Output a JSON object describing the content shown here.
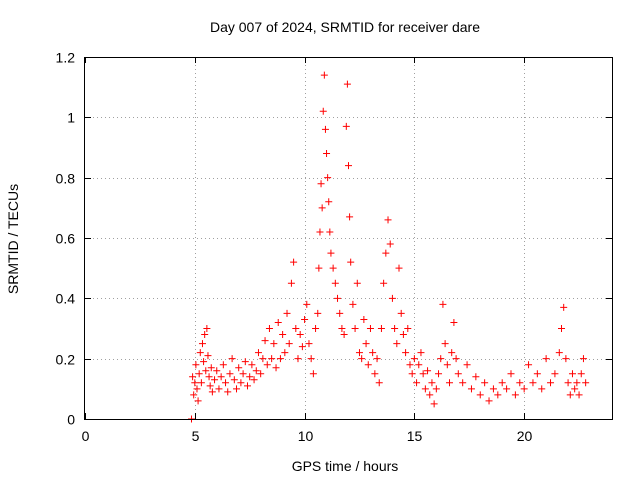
{
  "chart_data": {
    "type": "scatter",
    "title": "Day 007 of 2024, SRMTID for receiver dare",
    "xlabel": "GPS time / hours",
    "ylabel": "SRMTID / TECUs",
    "xlim": [
      0,
      24
    ],
    "ylim": [
      0,
      1.2
    ],
    "xticks": [
      0,
      5,
      10,
      15,
      20
    ],
    "yticks": [
      0,
      0.2,
      0.4,
      0.6,
      0.8,
      1,
      1.2
    ],
    "xtick_labels": [
      "0",
      "5",
      "10",
      "15",
      "20"
    ],
    "ytick_labels": [
      "0",
      "0.2",
      "0.4",
      "0.6",
      "0.8",
      "1",
      "1.2"
    ],
    "grid": true,
    "marker": "+",
    "series_color": "#ff0000",
    "points": [
      [
        4.85,
        0.0
      ],
      [
        4.9,
        0.14
      ],
      [
        4.95,
        0.08
      ],
      [
        5.0,
        0.12
      ],
      [
        5.05,
        0.18
      ],
      [
        5.1,
        0.1
      ],
      [
        5.15,
        0.06
      ],
      [
        5.2,
        0.15
      ],
      [
        5.25,
        0.22
      ],
      [
        5.3,
        0.12
      ],
      [
        5.35,
        0.25
      ],
      [
        5.4,
        0.19
      ],
      [
        5.45,
        0.28
      ],
      [
        5.5,
        0.16
      ],
      [
        5.55,
        0.3
      ],
      [
        5.6,
        0.21
      ],
      [
        5.65,
        0.14
      ],
      [
        5.7,
        0.11
      ],
      [
        5.75,
        0.17
      ],
      [
        5.8,
        0.09
      ],
      [
        5.9,
        0.13
      ],
      [
        6.0,
        0.16
      ],
      [
        6.1,
        0.1
      ],
      [
        6.2,
        0.14
      ],
      [
        6.3,
        0.18
      ],
      [
        6.4,
        0.12
      ],
      [
        6.5,
        0.09
      ],
      [
        6.6,
        0.15
      ],
      [
        6.7,
        0.2
      ],
      [
        6.8,
        0.13
      ],
      [
        6.9,
        0.1
      ],
      [
        7.0,
        0.17
      ],
      [
        7.1,
        0.12
      ],
      [
        7.2,
        0.15
      ],
      [
        7.3,
        0.19
      ],
      [
        7.4,
        0.11
      ],
      [
        7.5,
        0.14
      ],
      [
        7.6,
        0.18
      ],
      [
        7.7,
        0.13
      ],
      [
        7.8,
        0.16
      ],
      [
        7.9,
        0.22
      ],
      [
        8.0,
        0.15
      ],
      [
        8.1,
        0.2
      ],
      [
        8.2,
        0.26
      ],
      [
        8.3,
        0.18
      ],
      [
        8.4,
        0.3
      ],
      [
        8.5,
        0.2
      ],
      [
        8.6,
        0.25
      ],
      [
        8.7,
        0.17
      ],
      [
        8.8,
        0.32
      ],
      [
        8.9,
        0.2
      ],
      [
        9.0,
        0.28
      ],
      [
        9.1,
        0.22
      ],
      [
        9.2,
        0.35
      ],
      [
        9.3,
        0.25
      ],
      [
        9.4,
        0.45
      ],
      [
        9.5,
        0.52
      ],
      [
        9.6,
        0.3
      ],
      [
        9.7,
        0.2
      ],
      [
        9.8,
        0.28
      ],
      [
        9.9,
        0.24
      ],
      [
        10.0,
        0.33
      ],
      [
        10.1,
        0.38
      ],
      [
        10.2,
        0.25
      ],
      [
        10.3,
        0.2
      ],
      [
        10.4,
        0.15
      ],
      [
        10.5,
        0.3
      ],
      [
        10.6,
        0.35
      ],
      [
        10.65,
        0.5
      ],
      [
        10.7,
        0.62
      ],
      [
        10.75,
        0.78
      ],
      [
        10.8,
        0.7
      ],
      [
        10.85,
        1.02
      ],
      [
        10.9,
        1.14
      ],
      [
        10.95,
        0.96
      ],
      [
        11.0,
        0.88
      ],
      [
        11.05,
        0.8
      ],
      [
        11.1,
        0.72
      ],
      [
        11.15,
        0.62
      ],
      [
        11.2,
        0.55
      ],
      [
        11.3,
        0.5
      ],
      [
        11.4,
        0.45
      ],
      [
        11.5,
        0.4
      ],
      [
        11.6,
        0.35
      ],
      [
        11.7,
        0.3
      ],
      [
        11.8,
        0.28
      ],
      [
        11.9,
        0.97
      ],
      [
        11.95,
        1.11
      ],
      [
        12.0,
        0.84
      ],
      [
        12.05,
        0.67
      ],
      [
        12.1,
        0.52
      ],
      [
        12.2,
        0.38
      ],
      [
        12.3,
        0.3
      ],
      [
        12.4,
        0.45
      ],
      [
        12.5,
        0.22
      ],
      [
        12.6,
        0.2
      ],
      [
        12.7,
        0.33
      ],
      [
        12.8,
        0.25
      ],
      [
        12.9,
        0.18
      ],
      [
        13.0,
        0.3
      ],
      [
        13.1,
        0.22
      ],
      [
        13.2,
        0.15
      ],
      [
        13.3,
        0.2
      ],
      [
        13.4,
        0.12
      ],
      [
        13.5,
        0.3
      ],
      [
        13.6,
        0.45
      ],
      [
        13.7,
        0.55
      ],
      [
        13.8,
        0.66
      ],
      [
        13.9,
        0.58
      ],
      [
        14.0,
        0.4
      ],
      [
        14.1,
        0.3
      ],
      [
        14.2,
        0.25
      ],
      [
        14.3,
        0.5
      ],
      [
        14.4,
        0.35
      ],
      [
        14.5,
        0.28
      ],
      [
        14.6,
        0.22
      ],
      [
        14.7,
        0.3
      ],
      [
        14.8,
        0.18
      ],
      [
        14.9,
        0.15
      ],
      [
        15.0,
        0.2
      ],
      [
        15.1,
        0.12
      ],
      [
        15.2,
        0.18
      ],
      [
        15.3,
        0.22
      ],
      [
        15.4,
        0.15
      ],
      [
        15.5,
        0.1
      ],
      [
        15.6,
        0.16
      ],
      [
        15.7,
        0.08
      ],
      [
        15.8,
        0.12
      ],
      [
        15.9,
        0.05
      ],
      [
        16.0,
        0.1
      ],
      [
        16.1,
        0.15
      ],
      [
        16.2,
        0.2
      ],
      [
        16.3,
        0.38
      ],
      [
        16.4,
        0.25
      ],
      [
        16.5,
        0.18
      ],
      [
        16.6,
        0.12
      ],
      [
        16.7,
        0.22
      ],
      [
        16.8,
        0.32
      ],
      [
        16.9,
        0.2
      ],
      [
        17.0,
        0.15
      ],
      [
        17.2,
        0.12
      ],
      [
        17.4,
        0.18
      ],
      [
        17.6,
        0.1
      ],
      [
        17.8,
        0.14
      ],
      [
        18.0,
        0.08
      ],
      [
        18.2,
        0.12
      ],
      [
        18.4,
        0.06
      ],
      [
        18.6,
        0.1
      ],
      [
        18.8,
        0.08
      ],
      [
        19.0,
        0.12
      ],
      [
        19.2,
        0.1
      ],
      [
        19.4,
        0.15
      ],
      [
        19.6,
        0.08
      ],
      [
        19.8,
        0.12
      ],
      [
        20.0,
        0.1
      ],
      [
        20.2,
        0.18
      ],
      [
        20.4,
        0.12
      ],
      [
        20.6,
        0.15
      ],
      [
        20.8,
        0.1
      ],
      [
        21.0,
        0.2
      ],
      [
        21.2,
        0.12
      ],
      [
        21.4,
        0.15
      ],
      [
        21.6,
        0.22
      ],
      [
        21.7,
        0.3
      ],
      [
        21.8,
        0.37
      ],
      [
        21.9,
        0.2
      ],
      [
        22.0,
        0.12
      ],
      [
        22.1,
        0.08
      ],
      [
        22.2,
        0.15
      ],
      [
        22.3,
        0.1
      ],
      [
        22.4,
        0.12
      ],
      [
        22.5,
        0.08
      ],
      [
        22.6,
        0.15
      ],
      [
        22.7,
        0.2
      ],
      [
        22.8,
        0.12
      ]
    ]
  }
}
